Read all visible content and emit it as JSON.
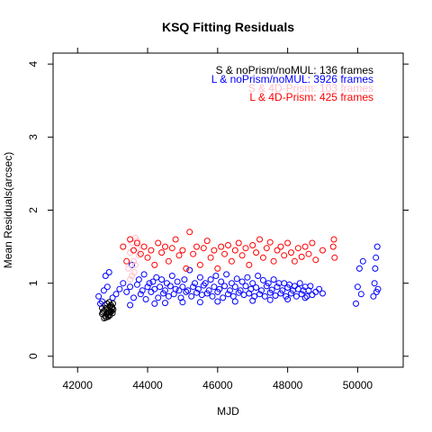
{
  "chart_data": {
    "type": "scatter",
    "title": "KSQ Fitting Residuals",
    "xlabel": "MJD",
    "ylabel": "Mean Residuals(arcsec)",
    "xlim": [
      41300,
      51300
    ],
    "ylim": [
      -0.15,
      4.15
    ],
    "x_ticks": [
      42000,
      44000,
      46000,
      48000,
      50000
    ],
    "y_ticks": [
      0,
      1,
      2,
      3,
      4
    ],
    "grid": false,
    "legend_position": "top-right",
    "legend": [
      {
        "label": "S & noPrism/noMUL:  136 frames",
        "color": "#000000"
      },
      {
        "label": "L & noPrism/noMUL: 3926 frames",
        "color": "#0000ff"
      },
      {
        "label": "S & 4D-Prism:  103 frames",
        "color": "#ffc0cb"
      },
      {
        "label": "L & 4D-Prism:  425 frames",
        "color": "#ff0000"
      }
    ],
    "series": [
      {
        "name": "S & noPrism/noMUL:  136 frames",
        "color": "#000000",
        "points": [
          [
            42700,
            0.58
          ],
          [
            42750,
            0.62
          ],
          [
            42800,
            0.55
          ],
          [
            42820,
            0.66
          ],
          [
            42850,
            0.6
          ],
          [
            42880,
            0.57
          ],
          [
            42900,
            0.63
          ],
          [
            42930,
            0.68
          ],
          [
            42960,
            0.61
          ],
          [
            42980,
            0.65
          ],
          [
            43000,
            0.59
          ],
          [
            43020,
            0.64
          ],
          [
            42780,
            0.7
          ],
          [
            42840,
            0.72
          ],
          [
            42900,
            0.74
          ],
          [
            42760,
            0.52
          ],
          [
            42810,
            0.53
          ],
          [
            42870,
            0.54
          ],
          [
            42920,
            0.56
          ],
          [
            42990,
            0.67
          ],
          [
            42720,
            0.6
          ],
          [
            42950,
            0.7
          ],
          [
            43010,
            0.72
          ],
          [
            42830,
            0.58
          ],
          [
            42890,
            0.6
          ],
          [
            42940,
            0.62
          ],
          [
            42700,
            0.66
          ]
        ]
      },
      {
        "name": "L & noPrism/noMUL: 3926 frames",
        "color": "#0000ff",
        "points": [
          [
            42600,
            0.82
          ],
          [
            42650,
            0.72
          ],
          [
            42700,
            0.75
          ],
          [
            42750,
            0.9
          ],
          [
            42800,
            1.1
          ],
          [
            42850,
            0.95
          ],
          [
            42900,
            1.15
          ],
          [
            43000,
            0.8
          ],
          [
            43100,
            0.85
          ],
          [
            43200,
            0.92
          ],
          [
            43300,
            1.0
          ],
          [
            43400,
            0.88
          ],
          [
            43500,
            0.95
          ],
          [
            43550,
            1.25
          ],
          [
            43600,
            0.8
          ],
          [
            43700,
            0.98
          ],
          [
            43750,
            1.05
          ],
          [
            43800,
            0.85
          ],
          [
            43850,
            0.9
          ],
          [
            43900,
            1.12
          ],
          [
            43950,
            0.78
          ],
          [
            44000,
            0.95
          ],
          [
            44050,
            1.0
          ],
          [
            44100,
            0.88
          ],
          [
            44150,
            1.02
          ],
          [
            44200,
            0.92
          ],
          [
            44250,
            1.08
          ],
          [
            44300,
            0.8
          ],
          [
            44350,
            0.95
          ],
          [
            44400,
            1.05
          ],
          [
            44450,
            0.86
          ],
          [
            44500,
            0.9
          ],
          [
            44550,
            1.0
          ],
          [
            44600,
            0.82
          ],
          [
            44650,
            0.96
          ],
          [
            44700,
            1.1
          ],
          [
            44750,
            0.85
          ],
          [
            44800,
            0.92
          ],
          [
            44850,
            1.02
          ],
          [
            44900,
            0.9
          ],
          [
            44950,
            0.8
          ],
          [
            45000,
            0.95
          ],
          [
            45050,
            1.05
          ],
          [
            45100,
            0.88
          ],
          [
            45150,
            0.9
          ],
          [
            45200,
            1.18
          ],
          [
            45250,
            0.82
          ],
          [
            45300,
            0.95
          ],
          [
            45350,
            1.0
          ],
          [
            45400,
            0.87
          ],
          [
            45450,
            0.92
          ],
          [
            45500,
            1.08
          ],
          [
            45550,
            0.84
          ],
          [
            45600,
            0.97
          ],
          [
            45650,
            1.0
          ],
          [
            45700,
            0.86
          ],
          [
            45750,
            0.9
          ],
          [
            45800,
            1.05
          ],
          [
            45850,
            0.82
          ],
          [
            45900,
            0.95
          ],
          [
            45950,
            1.1
          ],
          [
            46000,
            0.88
          ],
          [
            46050,
            0.92
          ],
          [
            46100,
            1.02
          ],
          [
            46150,
            0.8
          ],
          [
            46200,
            0.96
          ],
          [
            46250,
            1.12
          ],
          [
            46300,
            0.85
          ],
          [
            46350,
            0.9
          ],
          [
            46400,
            1.0
          ],
          [
            46450,
            0.82
          ],
          [
            46500,
            0.95
          ],
          [
            46550,
            1.06
          ],
          [
            46600,
            0.87
          ],
          [
            46650,
            0.9
          ],
          [
            46700,
            1.02
          ],
          [
            46750,
            0.84
          ],
          [
            46800,
            0.96
          ],
          [
            46850,
            1.08
          ],
          [
            46900,
            0.86
          ],
          [
            46950,
            0.92
          ],
          [
            47000,
            1.0
          ],
          [
            47050,
            0.82
          ],
          [
            47100,
            0.94
          ],
          [
            47150,
            1.1
          ],
          [
            47200,
            0.85
          ],
          [
            47250,
            0.9
          ],
          [
            47300,
            1.04
          ],
          [
            47350,
            0.82
          ],
          [
            47400,
            0.96
          ],
          [
            47450,
            1.0
          ],
          [
            47500,
            0.87
          ],
          [
            47550,
            0.91
          ],
          [
            47600,
            1.05
          ],
          [
            47650,
            0.83
          ],
          [
            47700,
            0.95
          ],
          [
            47750,
            1.0
          ],
          [
            47800,
            0.86
          ],
          [
            47850,
            0.9
          ],
          [
            47900,
            1.0
          ],
          [
            47950,
            0.82
          ],
          [
            48000,
            0.94
          ],
          [
            48050,
            0.98
          ],
          [
            48100,
            0.86
          ],
          [
            48150,
            0.9
          ],
          [
            48200,
            0.96
          ],
          [
            48250,
            0.82
          ],
          [
            48300,
            0.92
          ],
          [
            48350,
            1.0
          ],
          [
            48400,
            0.85
          ],
          [
            48450,
            0.9
          ],
          [
            48500,
            0.95
          ],
          [
            48550,
            0.82
          ],
          [
            48600,
            0.9
          ],
          [
            48650,
            0.96
          ],
          [
            48700,
            0.84
          ],
          [
            48800,
            0.88
          ],
          [
            48900,
            0.92
          ],
          [
            49000,
            0.86
          ],
          [
            49950,
            0.72
          ],
          [
            50000,
            0.95
          ],
          [
            50050,
            1.2
          ],
          [
            50100,
            0.85
          ],
          [
            50150,
            1.3
          ],
          [
            50450,
            0.82
          ],
          [
            50480,
            1.0
          ],
          [
            50500,
            1.2
          ],
          [
            50520,
            1.35
          ],
          [
            50540,
            0.88
          ],
          [
            50560,
            1.5
          ],
          [
            50580,
            0.92
          ],
          [
            44200,
            0.72
          ],
          [
            45000,
            0.74
          ],
          [
            46000,
            0.75
          ],
          [
            47000,
            0.76
          ],
          [
            48000,
            0.78
          ],
          [
            43500,
            0.7
          ],
          [
            44500,
            0.73
          ],
          [
            45500,
            0.74
          ],
          [
            46500,
            0.75
          ],
          [
            47500,
            0.77
          ],
          [
            48500,
            0.8
          ]
        ]
      },
      {
        "name": "S & 4D-Prism:  103 frames",
        "color": "#ffc0cb",
        "points": [
          [
            43500,
            1.42
          ],
          [
            43550,
            1.55
          ],
          [
            43600,
            1.3
          ],
          [
            43650,
            1.62
          ],
          [
            43700,
            1.48
          ],
          [
            43750,
            1.38
          ],
          [
            43450,
            1.2
          ],
          [
            43550,
            1.1
          ],
          [
            43650,
            1.25
          ],
          [
            43700,
            1.58
          ],
          [
            43500,
            1.05
          ],
          [
            43620,
            1.15
          ]
        ]
      },
      {
        "name": "L & 4D-Prism:  425 frames",
        "color": "#ff0000",
        "points": [
          [
            43300,
            1.5
          ],
          [
            43400,
            1.3
          ],
          [
            43500,
            1.6
          ],
          [
            43600,
            1.45
          ],
          [
            43700,
            1.55
          ],
          [
            43800,
            1.4
          ],
          [
            43900,
            1.5
          ],
          [
            44000,
            1.35
          ],
          [
            44100,
            1.45
          ],
          [
            44200,
            1.25
          ],
          [
            44300,
            1.55
          ],
          [
            44400,
            1.42
          ],
          [
            44500,
            1.5
          ],
          [
            44600,
            1.3
          ],
          [
            44700,
            1.48
          ],
          [
            44800,
            1.6
          ],
          [
            44900,
            1.38
          ],
          [
            45000,
            1.45
          ],
          [
            45100,
            1.2
          ],
          [
            45200,
            1.7
          ],
          [
            45300,
            1.4
          ],
          [
            45400,
            1.5
          ],
          [
            45500,
            1.25
          ],
          [
            45600,
            1.48
          ],
          [
            45700,
            1.58
          ],
          [
            45800,
            1.35
          ],
          [
            45900,
            1.45
          ],
          [
            46000,
            1.2
          ],
          [
            46100,
            1.5
          ],
          [
            46200,
            1.4
          ],
          [
            46300,
            1.52
          ],
          [
            46400,
            1.3
          ],
          [
            46500,
            1.45
          ],
          [
            46600,
            1.55
          ],
          [
            46700,
            1.38
          ],
          [
            46800,
            1.48
          ],
          [
            46900,
            1.25
          ],
          [
            47000,
            1.52
          ],
          [
            47100,
            1.42
          ],
          [
            47200,
            1.6
          ],
          [
            47300,
            1.35
          ],
          [
            47400,
            1.48
          ],
          [
            47500,
            1.56
          ],
          [
            47600,
            1.3
          ],
          [
            47700,
            1.45
          ],
          [
            47800,
            1.5
          ],
          [
            47900,
            1.38
          ],
          [
            48000,
            1.55
          ],
          [
            48100,
            1.42
          ],
          [
            48200,
            1.3
          ],
          [
            48300,
            1.48
          ],
          [
            48400,
            1.36
          ],
          [
            48500,
            1.5
          ],
          [
            48600,
            1.4
          ],
          [
            48700,
            1.55
          ],
          [
            48800,
            1.32
          ],
          [
            49000,
            1.45
          ],
          [
            49300,
            1.5
          ],
          [
            49320,
            1.6
          ],
          [
            49340,
            1.35
          ]
        ]
      }
    ]
  }
}
